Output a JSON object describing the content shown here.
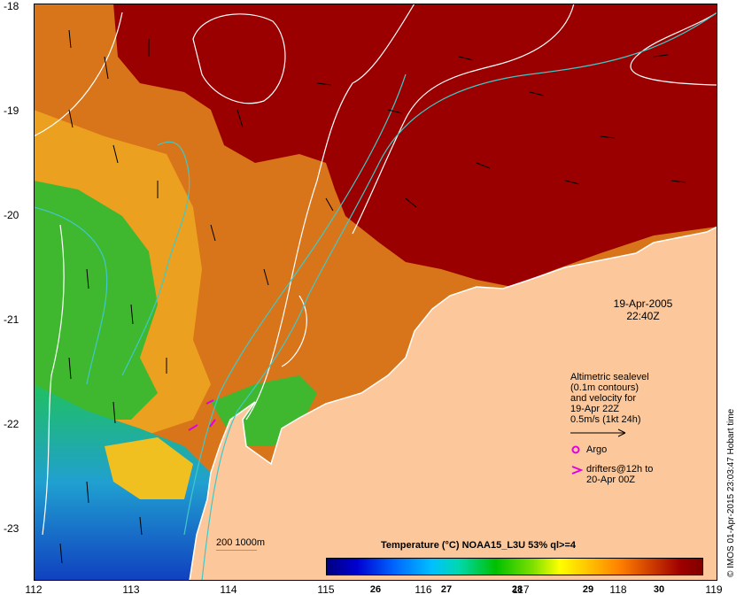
{
  "date": "19-Apr-2005",
  "time": "22:40Z",
  "legend": {
    "line1": "Altimetric sealevel",
    "line2": "(0.1m contours)",
    "line3": "and velocity for",
    "line4": "19-Apr 22Z",
    "line5": "0.5m/s (1kt 24h)",
    "argo": "Argo",
    "drifters1": "drifters@12h to",
    "drifters2": "20-Apr 00Z"
  },
  "colorbar": {
    "title": "Temperature (°C) NOAA15_L3U 53% ql>=4",
    "ticks": [
      "26",
      "27",
      "28",
      "29",
      "30"
    ],
    "range": [
      25.0,
      30.3
    ]
  },
  "scale_label": "200  1000m",
  "credit": "© IMOS 01-Apr-2015 23:03:47 Hobart time",
  "lat_labels": [
    "-18",
    "-19",
    "-20",
    "-21",
    "-22",
    "-23"
  ],
  "lon_labels": [
    "112",
    "113",
    "114",
    "115",
    "116",
    "117",
    "118",
    "119"
  ],
  "colors": {
    "land": "#fcc89b",
    "warm": "#9a0000",
    "mid": "#d86a10",
    "cool": "#2fb828",
    "cold": "#1a5ad8",
    "contour": "#ffffff",
    "isobath": "#40c8c8",
    "argo": "#e000e0"
  }
}
